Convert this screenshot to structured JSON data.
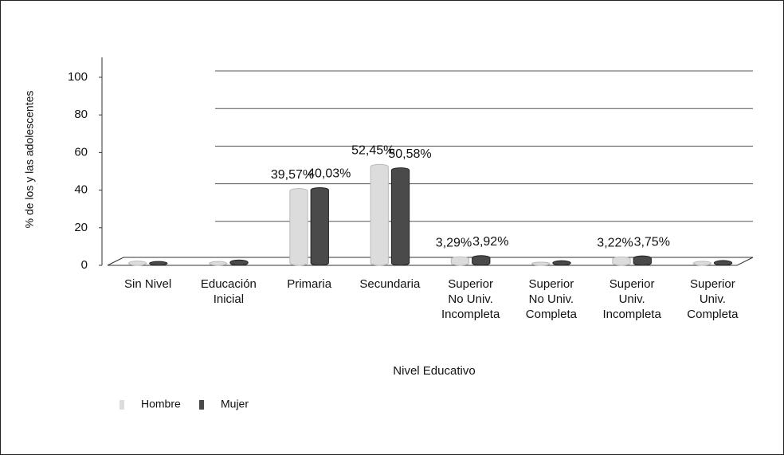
{
  "chart_data": {
    "type": "bar",
    "y_label": "% de los y las adolescentes",
    "x_label": "Nivel Educativo",
    "categories": [
      "Sin Nivel",
      "Educación\nInicial",
      "Primaria",
      "Secundaria",
      "Superior\nNo Univ.\nIncompleta",
      "Superior\nNo Univ.\nCompleta",
      "Superior\nUniv.\nIncompleta",
      "Superior\nUniv.\nCompleta"
    ],
    "series": [
      {
        "name": "Hombre",
        "color": "#dcdcdc",
        "values": [
          1.0,
          0.8,
          39.57,
          52.45,
          3.29,
          0.4,
          3.22,
          0.9
        ],
        "value_labels": [
          null,
          null,
          "39,57%",
          "52,45%",
          "3,29%",
          null,
          "3,22%",
          null
        ]
      },
      {
        "name": "Mujer",
        "color": "#4a4a4a",
        "values": [
          0.8,
          1.6,
          40.03,
          50.58,
          3.92,
          1.2,
          3.75,
          1.3
        ],
        "value_labels": [
          null,
          null,
          "40,03%",
          "50,58%",
          "3,92%",
          null,
          "3,75%",
          null
        ]
      }
    ],
    "ylim": [
      0,
      100
    ],
    "yticks": [
      0,
      20,
      40,
      60,
      80,
      100
    ],
    "grid": true,
    "legend": "bottom-left"
  }
}
